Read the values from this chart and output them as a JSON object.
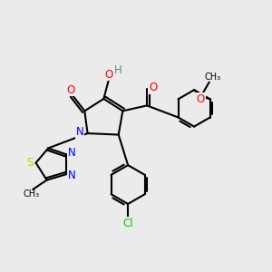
{
  "bg_color": "#ebebeb",
  "bond_color": "#000000",
  "atom_colors": {
    "O": "#ff0000",
    "N": "#0000ff",
    "S": "#cccc00",
    "Cl": "#00cc00",
    "H": "#4a9090",
    "C": "#000000"
  },
  "lw": 1.5,
  "fontsize": 7.5
}
